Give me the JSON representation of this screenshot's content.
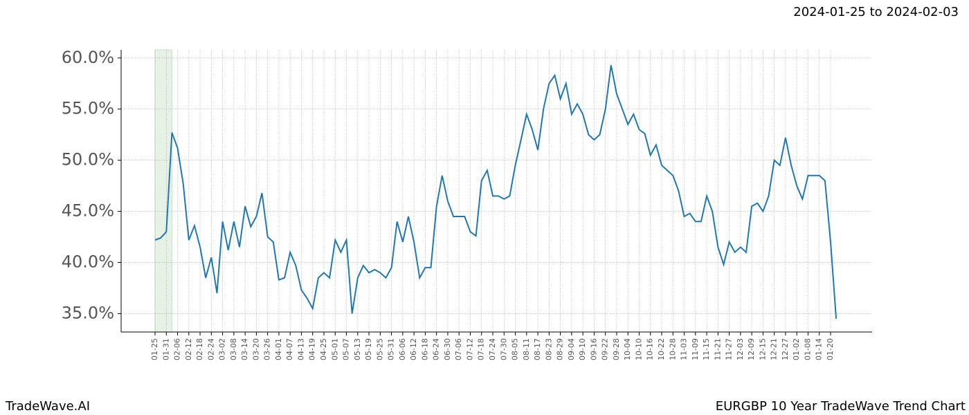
{
  "chart_data": {
    "type": "line",
    "title": "2024-01-25 to 2024-02-03",
    "footer_left": "TradeWave.AI",
    "footer_right": "EURGBP 10 Year TradeWave Trend Chart",
    "categories": [
      "01-25",
      null,
      "01-31",
      null,
      "02-06",
      null,
      "02-12",
      null,
      "02-18",
      null,
      "02-24",
      null,
      "03-02",
      null,
      "03-08",
      null,
      "03-14",
      null,
      "03-20",
      null,
      "03-26",
      null,
      "04-01",
      null,
      "04-07",
      null,
      "04-13",
      null,
      "04-19",
      null,
      "04-25",
      null,
      "05-01",
      null,
      "05-07",
      null,
      "05-13",
      null,
      "05-19",
      null,
      "05-25",
      null,
      "05-31",
      null,
      "06-06",
      null,
      "06-12",
      null,
      "06-18",
      null,
      "06-24",
      null,
      "06-30",
      null,
      "07-06",
      null,
      "07-12",
      null,
      "07-18",
      null,
      "07-24",
      null,
      "07-30",
      null,
      "08-05",
      null,
      "08-11",
      null,
      "08-17",
      null,
      "08-23",
      null,
      "08-29",
      null,
      "09-04",
      null,
      "09-10",
      null,
      "09-16",
      null,
      "09-22",
      null,
      "09-28",
      null,
      "10-04",
      null,
      "10-10",
      null,
      "10-16",
      null,
      "10-22",
      null,
      "10-28",
      null,
      "11-03",
      null,
      "11-09",
      null,
      "11-15",
      null,
      "11-21",
      null,
      "11-27",
      null,
      "12-03",
      null,
      "12-09",
      null,
      "12-15",
      null,
      "12-21",
      null,
      "12-27",
      null,
      "01-02",
      null,
      "01-08",
      null,
      "01-14",
      null,
      "01-20",
      null
    ],
    "series": [
      {
        "color": "#1f77b4",
        "values": [
          42.2,
          42.4,
          43.0,
          52.7,
          51.2,
          47.7,
          42.2,
          43.6,
          41.5,
          38.5,
          40.5,
          37.0,
          44.0,
          41.2,
          44.0,
          41.5,
          45.5,
          43.5,
          44.5,
          46.8,
          42.5,
          42.0,
          38.3,
          38.5,
          41.0,
          39.7,
          37.3,
          36.5,
          35.5,
          38.5,
          39.0,
          38.5,
          42.2,
          41.0,
          42.2,
          35.0,
          38.5,
          39.7,
          39.0,
          39.3,
          39.0,
          38.5,
          39.5,
          44.0,
          42.0,
          44.5,
          42.0,
          38.5,
          39.5,
          39.5,
          45.5,
          48.5,
          46.0,
          44.5,
          44.5,
          44.5,
          43.0,
          42.6,
          48.0,
          49.0,
          46.5,
          46.5,
          46.2,
          46.5,
          49.5,
          52.0,
          54.5,
          53.0,
          51.0,
          55.0,
          57.5,
          58.3,
          56.0,
          57.5,
          54.5,
          55.5,
          54.5,
          52.5,
          52.0,
          52.5,
          55.0,
          59.3,
          56.5,
          55.0,
          53.5,
          54.5,
          53.0,
          52.6,
          50.5,
          51.5,
          49.5,
          49.0,
          48.5,
          47.0,
          44.5,
          44.8,
          44.0,
          44.0,
          46.5,
          45.0,
          41.5,
          39.8,
          42.0,
          41.0,
          41.5,
          41.0,
          45.5,
          45.8,
          45.0,
          46.5,
          50.0,
          49.5,
          52.2,
          49.5,
          47.5,
          46.2,
          48.5,
          48.5,
          48.5,
          48.0,
          42.0,
          34.5
        ]
      }
    ],
    "shade": {
      "from": 0,
      "to": 3,
      "color": "#e6f2e6"
    },
    "ylim": [
      33.2,
      60.8
    ],
    "yticks": [
      {
        "value": 35,
        "label": "35.0%"
      },
      {
        "value": 40,
        "label": "40.0%"
      },
      {
        "value": 45,
        "label": "45.0%"
      },
      {
        "value": 50,
        "label": "50.0%"
      },
      {
        "value": 55,
        "label": "55.0%"
      },
      {
        "value": 60,
        "label": "60.0%"
      }
    ],
    "grid": true
  }
}
